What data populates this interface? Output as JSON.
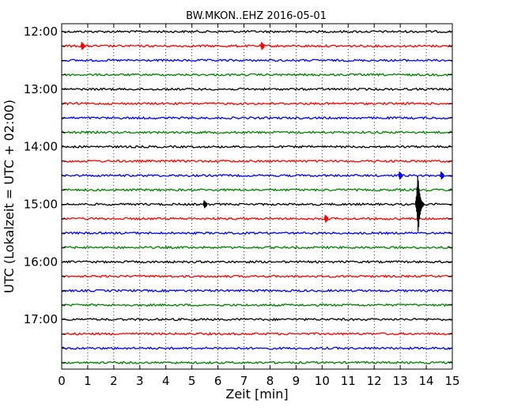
{
  "chart_data": {
    "type": "line",
    "title": "BW.MKON..EHZ 2016-05-01",
    "xlabel": "Zeit  [min]",
    "ylabel": "UTC (Lokalzeit = UTC + 02:00)",
    "xlim": [
      0,
      15
    ],
    "x_ticks": [
      "0",
      "1",
      "2",
      "3",
      "4",
      "5",
      "6",
      "7",
      "8",
      "9",
      "10",
      "11",
      "12",
      "13",
      "14",
      "15"
    ],
    "y_tick_labels": [
      "12:00",
      "13:00",
      "14:00",
      "15:00",
      "16:00",
      "17:00"
    ],
    "grid": "vertical dotted lines at each minute",
    "trace_colors": [
      "#000000",
      "#ff0000",
      "#0000ff",
      "#008000"
    ],
    "traces": [
      {
        "start": "12:00",
        "color": "#000000"
      },
      {
        "start": "12:15",
        "color": "#ff0000"
      },
      {
        "start": "12:30",
        "color": "#0000ff"
      },
      {
        "start": "12:45",
        "color": "#008000"
      },
      {
        "start": "13:00",
        "color": "#000000"
      },
      {
        "start": "13:15",
        "color": "#ff0000"
      },
      {
        "start": "13:30",
        "color": "#0000ff"
      },
      {
        "start": "13:45",
        "color": "#008000"
      },
      {
        "start": "14:00",
        "color": "#000000"
      },
      {
        "start": "14:15",
        "color": "#ff0000"
      },
      {
        "start": "14:30",
        "color": "#0000ff"
      },
      {
        "start": "14:45",
        "color": "#008000"
      },
      {
        "start": "15:00",
        "color": "#000000"
      },
      {
        "start": "15:15",
        "color": "#ff0000"
      },
      {
        "start": "15:30",
        "color": "#0000ff"
      },
      {
        "start": "15:45",
        "color": "#008000"
      },
      {
        "start": "16:00",
        "color": "#000000"
      },
      {
        "start": "16:15",
        "color": "#ff0000"
      },
      {
        "start": "16:30",
        "color": "#0000ff"
      },
      {
        "start": "16:45",
        "color": "#008000"
      },
      {
        "start": "17:00",
        "color": "#000000"
      },
      {
        "start": "17:15",
        "color": "#ff0000"
      },
      {
        "start": "17:30",
        "color": "#0000ff"
      },
      {
        "start": "17:45",
        "color": "#008000"
      }
    ],
    "events": [
      {
        "start": "12:15",
        "x": 0.8,
        "amplitude": "small"
      },
      {
        "start": "12:15",
        "x": 7.7,
        "amplitude": "small"
      },
      {
        "start": "14:30",
        "x": 13.0,
        "amplitude": "small"
      },
      {
        "start": "14:30",
        "x": 14.6,
        "amplitude": "small"
      },
      {
        "start": "15:00",
        "x": 5.5,
        "amplitude": "small"
      },
      {
        "start": "15:00",
        "x": 13.65,
        "amplitude": "large"
      },
      {
        "start": "15:15",
        "x": 10.15,
        "amplitude": "small"
      }
    ]
  }
}
